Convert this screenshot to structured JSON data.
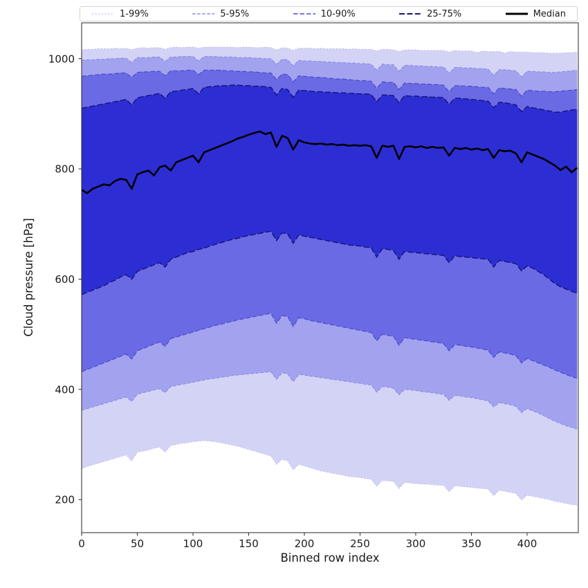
{
  "chart_data": {
    "type": "area",
    "title": "",
    "xlabel": "Binned row index",
    "ylabel": "Cloud pressure [hPa]",
    "xlim": [
      0,
      446
    ],
    "ylim": [
      140,
      1065
    ],
    "xticks": [
      0,
      50,
      100,
      150,
      200,
      250,
      300,
      350,
      400
    ],
    "yticks": [
      200,
      400,
      600,
      800,
      1000
    ],
    "legend_position": "top",
    "grid": false,
    "x": [
      0,
      5,
      10,
      15,
      20,
      25,
      30,
      35,
      40,
      45,
      50,
      55,
      60,
      65,
      70,
      75,
      80,
      85,
      90,
      95,
      100,
      105,
      110,
      115,
      120,
      125,
      130,
      135,
      140,
      145,
      150,
      155,
      160,
      165,
      170,
      175,
      180,
      185,
      190,
      195,
      200,
      205,
      210,
      215,
      220,
      225,
      230,
      235,
      240,
      245,
      250,
      255,
      260,
      265,
      270,
      275,
      280,
      285,
      290,
      295,
      300,
      305,
      310,
      315,
      320,
      325,
      330,
      335,
      340,
      345,
      350,
      355,
      360,
      365,
      370,
      375,
      380,
      385,
      390,
      395,
      400,
      405,
      410,
      415,
      420,
      425,
      430,
      435,
      440,
      445
    ],
    "bands": [
      {
        "label": "1-99%",
        "fill": "#d3d3f5",
        "line": "#b7b7ef",
        "lower": [
          256,
          260,
          263,
          266,
          269,
          272,
          275,
          278,
          281,
          270,
          286,
          288,
          290,
          293,
          295,
          286,
          298,
          300,
          302,
          303,
          305,
          306,
          307,
          306,
          305,
          303,
          301,
          299,
          297,
          294,
          291,
          288,
          285,
          282,
          279,
          264,
          273,
          270,
          254,
          264,
          261,
          258,
          255,
          252,
          250,
          248,
          246,
          244,
          242,
          241,
          240,
          238,
          237,
          224,
          235,
          234,
          233,
          220,
          231,
          230,
          229,
          228,
          228,
          227,
          226,
          226,
          214,
          225,
          224,
          223,
          222,
          221,
          220,
          219,
          207,
          217,
          215,
          213,
          211,
          199,
          208,
          206,
          204,
          202,
          200,
          197,
          195,
          193,
          191,
          190
        ],
        "upper": [
          1016,
          1017,
          1017,
          1018,
          1018,
          1018,
          1019,
          1018,
          1019,
          1016,
          1019,
          1020,
          1019,
          1020,
          1020,
          1017,
          1020,
          1021,
          1020,
          1021,
          1021,
          1019,
          1021,
          1021,
          1021,
          1021,
          1021,
          1021,
          1020,
          1021,
          1021,
          1020,
          1020,
          1021,
          1020,
          1016,
          1020,
          1019,
          1015,
          1019,
          1019,
          1019,
          1018,
          1019,
          1018,
          1018,
          1018,
          1018,
          1017,
          1018,
          1017,
          1017,
          1017,
          1014,
          1017,
          1017,
          1016,
          1013,
          1016,
          1016,
          1016,
          1015,
          1015,
          1015,
          1015,
          1015,
          1012,
          1015,
          1014,
          1014,
          1014,
          1011,
          1014,
          1013,
          1013,
          1013,
          1010,
          1013,
          1012,
          1012,
          1012,
          1011,
          1011,
          1011,
          1010,
          1010,
          1010,
          1011,
          1011,
          1012
        ]
      },
      {
        "label": "5-95%",
        "fill": "#a2a2ee",
        "line": "#8787e8",
        "lower": [
          362,
          365,
          368,
          371,
          374,
          377,
          380,
          383,
          386,
          378,
          391,
          394,
          396,
          399,
          401,
          394,
          405,
          407,
          409,
          411,
          413,
          415,
          417,
          419,
          420,
          422,
          423,
          425,
          426,
          427,
          428,
          429,
          430,
          431,
          432,
          418,
          430,
          428,
          414,
          427,
          426,
          424,
          423,
          421,
          420,
          418,
          417,
          415,
          414,
          412,
          411,
          409,
          408,
          395,
          405,
          404,
          402,
          390,
          400,
          399,
          398,
          396,
          395,
          394,
          392,
          391,
          380,
          389,
          388,
          386,
          385,
          383,
          381,
          379,
          368,
          376,
          374,
          372,
          369,
          358,
          365,
          361,
          357,
          352,
          347,
          342,
          338,
          334,
          331,
          328
        ],
        "upper": [
          997,
          998,
          998,
          999,
          999,
          1000,
          1000,
          1001,
          1001,
          993,
          1002,
          1002,
          1002,
          1003,
          1003,
          995,
          1003,
          1003,
          1004,
          1004,
          1004,
          996,
          1004,
          1004,
          1004,
          1003,
          1003,
          1003,
          1002,
          1002,
          1002,
          1001,
          1001,
          1000,
          1000,
          990,
          999,
          998,
          987,
          997,
          996,
          996,
          995,
          995,
          994,
          994,
          993,
          993,
          992,
          992,
          991,
          991,
          990,
          979,
          990,
          989,
          989,
          977,
          988,
          988,
          987,
          987,
          986,
          986,
          985,
          985,
          974,
          984,
          984,
          983,
          983,
          982,
          982,
          981,
          970,
          980,
          980,
          979,
          978,
          967,
          977,
          977,
          976,
          976,
          975,
          975,
          976,
          977,
          978,
          979
        ]
      },
      {
        "label": "10-90%",
        "fill": "#6a6ae4",
        "line": "#4a4ad0",
        "lower": [
          432,
          436,
          440,
          444,
          448,
          452,
          456,
          460,
          464,
          455,
          470,
          474,
          478,
          482,
          486,
          478,
          492,
          495,
          498,
          501,
          504,
          507,
          510,
          513,
          516,
          518,
          521,
          523,
          526,
          528,
          530,
          532,
          534,
          536,
          538,
          520,
          534,
          532,
          514,
          530,
          528,
          525,
          523,
          521,
          519,
          517,
          515,
          513,
          511,
          509,
          507,
          505,
          503,
          488,
          500,
          498,
          496,
          480,
          494,
          492,
          491,
          489,
          488,
          486,
          485,
          483,
          470,
          481,
          480,
          478,
          477,
          475,
          473,
          471,
          458,
          468,
          466,
          464,
          461,
          448,
          456,
          452,
          448,
          444,
          440,
          435,
          431,
          427,
          423,
          420
        ],
        "upper": [
          968,
          969,
          970,
          971,
          972,
          972,
          973,
          974,
          974,
          966,
          975,
          976,
          976,
          977,
          977,
          969,
          978,
          978,
          978,
          979,
          979,
          971,
          979,
          979,
          979,
          979,
          978,
          978,
          977,
          977,
          976,
          976,
          975,
          974,
          974,
          962,
          972,
          971,
          958,
          969,
          968,
          967,
          966,
          966,
          965,
          964,
          963,
          963,
          962,
          961,
          960,
          960,
          959,
          946,
          958,
          957,
          957,
          944,
          956,
          955,
          955,
          954,
          954,
          953,
          953,
          952,
          940,
          951,
          951,
          950,
          950,
          949,
          948,
          948,
          936,
          947,
          946,
          945,
          944,
          932,
          943,
          942,
          941,
          941,
          940,
          940,
          941,
          942,
          943,
          944
        ]
      },
      {
        "label": "25-75%",
        "fill": "#2d2dd4",
        "line": "#16167a",
        "lower": [
          572,
          576,
          580,
          584,
          588,
          594,
          598,
          604,
          608,
          600,
          614,
          618,
          622,
          626,
          630,
          622,
          636,
          640,
          644,
          648,
          650,
          654,
          656,
          660,
          663,
          666,
          669,
          672,
          674,
          677,
          679,
          681,
          683,
          685,
          687,
          670,
          684,
          682,
          665,
          680,
          678,
          676,
          674,
          672,
          670,
          668,
          666,
          664,
          662,
          661,
          660,
          658,
          657,
          640,
          655,
          654,
          652,
          636,
          650,
          649,
          648,
          647,
          646,
          645,
          644,
          643,
          630,
          642,
          641,
          640,
          639,
          638,
          637,
          636,
          622,
          634,
          632,
          630,
          628,
          615,
          624,
          620,
          614,
          608,
          600,
          592,
          586,
          582,
          578,
          574
        ],
        "upper": [
          910,
          912,
          914,
          916,
          918,
          920,
          922,
          924,
          926,
          916,
          929,
          931,
          933,
          935,
          937,
          928,
          940,
          941,
          943,
          944,
          946,
          936,
          948,
          949,
          950,
          951,
          951,
          952,
          952,
          951,
          951,
          950,
          950,
          949,
          948,
          934,
          946,
          944,
          930,
          943,
          942,
          941,
          940,
          940,
          939,
          939,
          938,
          938,
          937,
          937,
          936,
          936,
          935,
          922,
          934,
          934,
          933,
          920,
          933,
          932,
          932,
          931,
          931,
          930,
          930,
          929,
          917,
          928,
          928,
          927,
          926,
          925,
          924,
          923,
          911,
          921,
          920,
          918,
          916,
          904,
          913,
          911,
          909,
          907,
          905,
          903,
          903,
          905,
          907,
          908
        ]
      }
    ],
    "median": {
      "label": "Median",
      "color": "#000000",
      "values": [
        762,
        756,
        764,
        768,
        772,
        770,
        778,
        782,
        780,
        764,
        790,
        794,
        797,
        788,
        803,
        806,
        797,
        812,
        816,
        820,
        824,
        812,
        830,
        834,
        838,
        842,
        846,
        850,
        855,
        858,
        862,
        865,
        868,
        863,
        866,
        840,
        860,
        856,
        835,
        852,
        848,
        846,
        845,
        846,
        844,
        845,
        843,
        844,
        842,
        843,
        842,
        843,
        841,
        820,
        842,
        840,
        842,
        818,
        840,
        841,
        839,
        841,
        838,
        840,
        838,
        839,
        824,
        838,
        836,
        838,
        835,
        837,
        834,
        836,
        820,
        834,
        832,
        833,
        828,
        812,
        830,
        826,
        822,
        818,
        812,
        806,
        798,
        804,
        794,
        802
      ]
    }
  }
}
